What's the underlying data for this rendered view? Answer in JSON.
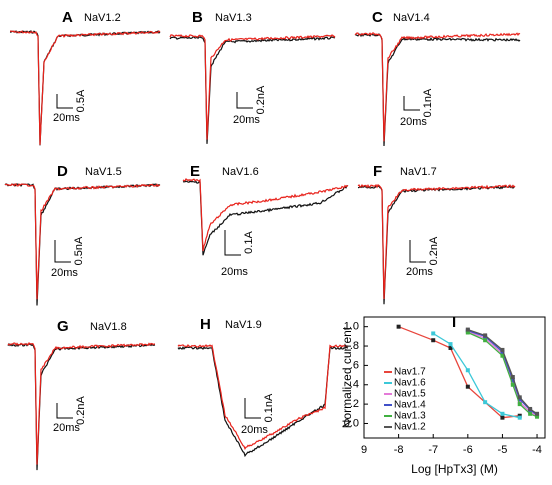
{
  "panels": [
    {
      "letter": "A",
      "channel": "NaV1.2",
      "current_scale": "0.5A",
      "time_scale": "20ms"
    },
    {
      "letter": "B",
      "channel": "NaV1.3",
      "current_scale": "0.2nA",
      "time_scale": "20ms"
    },
    {
      "letter": "C",
      "channel": "NaV1.4",
      "current_scale": "0.1nA",
      "time_scale": "20ms"
    },
    {
      "letter": "D",
      "channel": "NaV1.5",
      "current_scale": "0.5nA",
      "time_scale": "20ms"
    },
    {
      "letter": "E",
      "channel": "NaV1.6",
      "current_scale": "0.1A",
      "time_scale": "20ms"
    },
    {
      "letter": "F",
      "channel": "NaV1.7",
      "current_scale": "0.2nA",
      "time_scale": "20ms"
    },
    {
      "letter": "G",
      "channel": "NaV1.8",
      "current_scale": "0.2nA",
      "time_scale": "20ms"
    },
    {
      "letter": "H",
      "channel": "NaV1.9",
      "current_scale": "0.1nA",
      "time_scale": "20ms"
    }
  ],
  "chart_data": {
    "type": "scatter",
    "panel_label": "I",
    "x_label": "Log [HpTx3] (M)",
    "y_label": "Normalized current",
    "xlim": [
      -9,
      -3.77
    ],
    "ylim": [
      -0.15,
      1.1
    ],
    "xticks": [
      {
        "value": -9,
        "label": "9"
      },
      -8,
      -7,
      -6,
      -5,
      -4
    ],
    "yticks": [
      {
        "value": 0,
        "label": "0.0"
      },
      {
        "value": 0.2,
        "label": ".2"
      },
      {
        "value": 0.4,
        "label": ".4"
      },
      {
        "value": 0.6,
        "label": ".6"
      },
      {
        "value": 0.8,
        "label": ".8"
      },
      {
        "value": 1,
        "label": "1.0"
      }
    ],
    "series": [
      {
        "name": "Nav1.7",
        "color": "#e8453c",
        "x": [
          -8,
          -7,
          -6.5,
          -6,
          -5,
          -4.5
        ],
        "values": [
          1.0,
          0.86,
          0.78,
          0.38,
          0.06,
          0.08
        ]
      },
      {
        "name": "Nav1.6",
        "color": "#3cc8d8",
        "x": [
          -7,
          -6.5,
          -6,
          -5.5,
          -5,
          -4.5
        ],
        "values": [
          0.93,
          0.82,
          0.55,
          0.22,
          0.1,
          0.06
        ]
      },
      {
        "name": "Nav1.5",
        "color": "#e47ad8",
        "x": [
          -6,
          -5.5,
          -5,
          -4.7,
          -4.5,
          -4.2,
          -4
        ],
        "values": [
          0.95,
          0.88,
          0.72,
          0.42,
          0.22,
          0.12,
          0.08
        ]
      },
      {
        "name": "Nav1.4",
        "color": "#4050c8",
        "x": [
          -6,
          -5.5,
          -5,
          -4.7,
          -4.5,
          -4.2,
          -4
        ],
        "values": [
          0.96,
          0.9,
          0.74,
          0.45,
          0.25,
          0.14,
          0.09
        ]
      },
      {
        "name": "Nav1.3",
        "color": "#40b040",
        "x": [
          -6,
          -5.5,
          -5,
          -4.7,
          -4.5,
          -4.2,
          -4
        ],
        "values": [
          0.94,
          0.86,
          0.7,
          0.4,
          0.2,
          0.1,
          0.07
        ]
      },
      {
        "name": "Nav1.2",
        "color": "#555555",
        "x": [
          -6,
          -5.5,
          -5,
          -4.7,
          -4.5,
          -4.2,
          -4
        ],
        "values": [
          0.97,
          0.91,
          0.76,
          0.48,
          0.27,
          0.15,
          0.1
        ]
      }
    ]
  }
}
